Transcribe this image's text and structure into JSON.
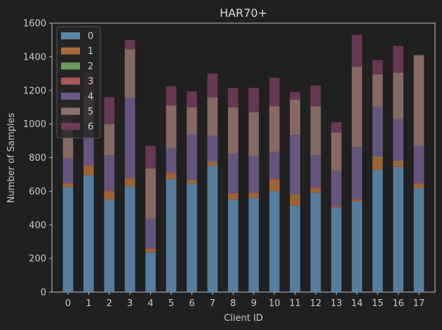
{
  "chart_data": {
    "type": "bar",
    "stacked": true,
    "title": "HAR70+",
    "xlabel": "Client ID",
    "ylabel": "Number of Samples",
    "ylim": [
      0,
      1600
    ],
    "yticks": [
      0,
      200,
      400,
      600,
      800,
      1000,
      1200,
      1400,
      1600
    ],
    "categories": [
      "0",
      "1",
      "2",
      "3",
      "4",
      "5",
      "6",
      "7",
      "8",
      "9",
      "10",
      "11",
      "12",
      "13",
      "14",
      "15",
      "16",
      "17"
    ],
    "legend": {
      "placement": "top-left"
    },
    "series": [
      {
        "name": "0",
        "color": "#5a86a8",
        "values": [
          625,
          695,
          550,
          630,
          235,
          670,
          645,
          750,
          550,
          560,
          600,
          515,
          590,
          500,
          540,
          730,
          745,
          620
        ]
      },
      {
        "name": "1",
        "color": "#a8693a",
        "values": [
          20,
          55,
          50,
          45,
          20,
          35,
          15,
          20,
          35,
          30,
          70,
          60,
          30,
          5,
          10,
          70,
          30,
          25
        ]
      },
      {
        "name": "2",
        "color": "#6a9a5a",
        "values": [
          0,
          0,
          0,
          0,
          0,
          0,
          5,
          5,
          0,
          0,
          0,
          5,
          0,
          0,
          0,
          5,
          5,
          0
        ]
      },
      {
        "name": "3",
        "color": "#a85858",
        "values": [
          5,
          5,
          5,
          5,
          5,
          5,
          5,
          5,
          5,
          5,
          5,
          5,
          5,
          5,
          5,
          5,
          5,
          5
        ]
      },
      {
        "name": "4",
        "color": "#6b5a85",
        "values": [
          145,
          245,
          210,
          475,
          175,
          145,
          270,
          150,
          235,
          215,
          160,
          350,
          190,
          210,
          310,
          290,
          245,
          220
        ]
      },
      {
        "name": "5",
        "color": "#8e7068",
        "values": [
          180,
          160,
          185,
          290,
          300,
          255,
          160,
          230,
          275,
          260,
          270,
          210,
          290,
          230,
          475,
          195,
          275,
          540
        ]
      },
      {
        "name": "6",
        "color": "#6e3a58",
        "values": [
          135,
          150,
          160,
          55,
          135,
          115,
          95,
          140,
          115,
          145,
          170,
          45,
          125,
          60,
          190,
          85,
          160,
          0
        ]
      }
    ]
  }
}
